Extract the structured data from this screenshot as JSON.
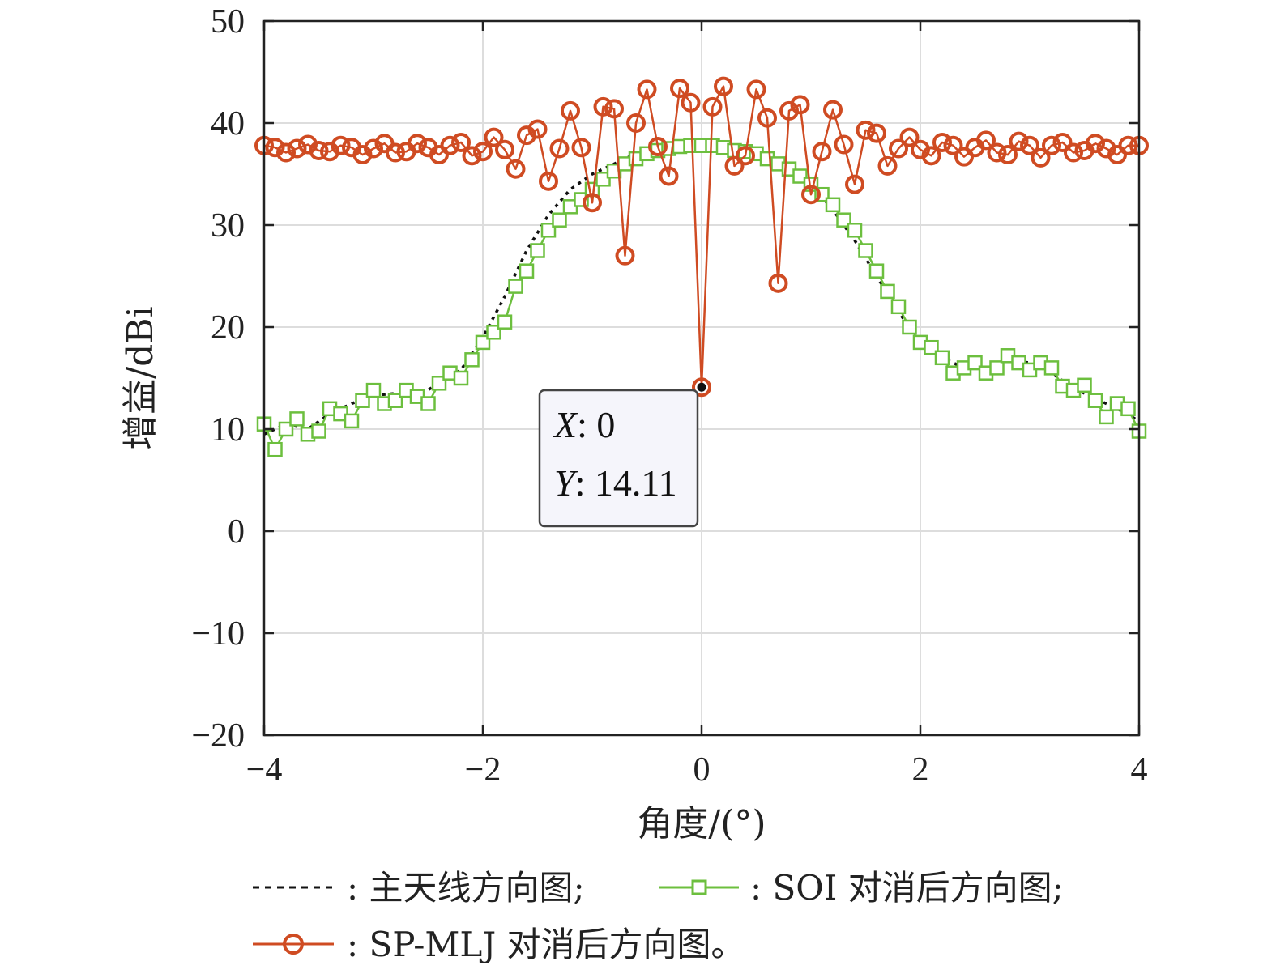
{
  "chart_data": {
    "type": "line",
    "xlabel": "角度/(°)",
    "ylabel": "增益/dBi",
    "xlim": [
      -4,
      4
    ],
    "ylim": [
      -20,
      50
    ],
    "xticks": [
      "−4",
      "−2",
      "0",
      "2",
      "4"
    ],
    "xtick_values": [
      -4,
      -2,
      0,
      2,
      4
    ],
    "yticks": [
      "50",
      "40",
      "30",
      "20",
      "10",
      "0",
      "−10",
      "−20"
    ],
    "ytick_values": [
      50,
      40,
      30,
      20,
      10,
      0,
      -10,
      -20
    ],
    "grid": true,
    "legend_position": "bottom",
    "colors": {
      "main": "#111111",
      "soi": "#6cbf3e",
      "sp": "#cf4b22",
      "grid": "#dddddd"
    },
    "series": [
      {
        "name": "主天线方向图",
        "key": "main",
        "style": "dotted",
        "x": [
          -4.0,
          -3.8,
          -3.6,
          -3.4,
          -3.2,
          -3.0,
          -2.8,
          -2.6,
          -2.4,
          -2.2,
          -2.0,
          -1.8,
          -1.6,
          -1.4,
          -1.2,
          -1.0,
          -0.8,
          -0.6,
          -0.4,
          -0.2,
          0.0,
          0.2,
          0.4,
          0.6,
          0.8,
          1.0,
          1.2,
          1.4,
          1.6,
          1.8,
          2.0,
          2.2,
          2.4,
          2.6,
          2.8,
          3.0,
          3.2,
          3.4,
          3.6,
          3.8,
          4.0
        ],
        "y": [
          9.5,
          10.5,
          10.0,
          11.5,
          12.5,
          13.3,
          13.5,
          13.2,
          14.5,
          15.8,
          19.0,
          23.0,
          27.5,
          31.0,
          33.5,
          35.0,
          36.0,
          37.0,
          37.5,
          38.0,
          38.0,
          38.0,
          37.5,
          37.0,
          36.0,
          34.0,
          31.5,
          28.5,
          25.0,
          21.5,
          18.5,
          17.0,
          16.0,
          16.0,
          16.8,
          16.5,
          15.5,
          14.0,
          13.0,
          12.0,
          10.8
        ]
      },
      {
        "name": "SOI 对消后方向图",
        "key": "soi",
        "style": "square",
        "x": [
          -4.0,
          -3.9,
          -3.8,
          -3.7,
          -3.6,
          -3.5,
          -3.4,
          -3.3,
          -3.2,
          -3.1,
          -3.0,
          -2.9,
          -2.8,
          -2.7,
          -2.6,
          -2.5,
          -2.4,
          -2.3,
          -2.2,
          -2.1,
          -2.0,
          -1.9,
          -1.8,
          -1.7,
          -1.6,
          -1.5,
          -1.4,
          -1.3,
          -1.2,
          -1.1,
          -1.0,
          -0.9,
          -0.8,
          -0.7,
          -0.6,
          -0.5,
          -0.4,
          -0.3,
          -0.2,
          -0.1,
          0.0,
          0.1,
          0.2,
          0.3,
          0.4,
          0.5,
          0.6,
          0.7,
          0.8,
          0.9,
          1.0,
          1.1,
          1.2,
          1.3,
          1.4,
          1.5,
          1.6,
          1.7,
          1.8,
          1.9,
          2.0,
          2.1,
          2.2,
          2.3,
          2.4,
          2.5,
          2.6,
          2.7,
          2.8,
          2.9,
          3.0,
          3.1,
          3.2,
          3.3,
          3.4,
          3.5,
          3.6,
          3.7,
          3.8,
          3.9,
          4.0
        ],
        "y": [
          10.5,
          8.0,
          10.0,
          11.0,
          9.5,
          9.8,
          12.0,
          11.5,
          10.8,
          12.8,
          13.8,
          12.5,
          12.8,
          13.8,
          13.2,
          12.5,
          14.5,
          15.5,
          15.0,
          16.8,
          18.5,
          19.5,
          20.5,
          24.0,
          25.5,
          27.5,
          29.5,
          30.5,
          31.8,
          32.5,
          33.5,
          34.5,
          35.3,
          36.0,
          36.5,
          37.0,
          37.3,
          37.5,
          37.7,
          37.8,
          37.8,
          37.8,
          37.6,
          37.3,
          37.2,
          37.0,
          36.5,
          36.0,
          35.5,
          34.8,
          34.0,
          33.0,
          32.0,
          30.5,
          29.5,
          27.5,
          25.5,
          23.5,
          22.0,
          20.0,
          18.5,
          18.0,
          17.0,
          15.5,
          16.0,
          16.5,
          15.5,
          16.0,
          17.2,
          16.5,
          15.8,
          16.5,
          16.0,
          14.2,
          13.8,
          14.3,
          12.8,
          11.2,
          12.5,
          12.0,
          9.8
        ]
      },
      {
        "name": "SP-MLJ 对消后方向图",
        "key": "sp",
        "style": "circle",
        "x": [
          -4.0,
          -3.9,
          -3.8,
          -3.7,
          -3.6,
          -3.5,
          -3.4,
          -3.3,
          -3.2,
          -3.1,
          -3.0,
          -2.9,
          -2.8,
          -2.7,
          -2.6,
          -2.5,
          -2.4,
          -2.3,
          -2.2,
          -2.1,
          -2.0,
          -1.9,
          -1.8,
          -1.7,
          -1.6,
          -1.5,
          -1.4,
          -1.3,
          -1.2,
          -1.1,
          -1.0,
          -0.9,
          -0.8,
          -0.7,
          -0.6,
          -0.5,
          -0.4,
          -0.3,
          -0.2,
          -0.1,
          0.0,
          0.1,
          0.2,
          0.3,
          0.4,
          0.5,
          0.6,
          0.7,
          0.8,
          0.9,
          1.0,
          1.1,
          1.2,
          1.3,
          1.4,
          1.5,
          1.6,
          1.7,
          1.8,
          1.9,
          2.0,
          2.1,
          2.2,
          2.3,
          2.4,
          2.5,
          2.6,
          2.7,
          2.8,
          2.9,
          3.0,
          3.1,
          3.2,
          3.3,
          3.4,
          3.5,
          3.6,
          3.7,
          3.8,
          3.9,
          4.0
        ],
        "y": [
          37.8,
          37.6,
          37.1,
          37.5,
          37.9,
          37.3,
          37.2,
          37.8,
          37.6,
          36.9,
          37.5,
          38.0,
          37.1,
          37.2,
          38.0,
          37.6,
          36.9,
          37.8,
          38.1,
          36.8,
          37.2,
          38.6,
          37.4,
          35.5,
          38.8,
          39.4,
          34.3,
          37.5,
          41.2,
          37.6,
          32.2,
          41.6,
          41.4,
          27.0,
          40.0,
          43.3,
          37.7,
          34.8,
          43.4,
          42.0,
          14.11,
          41.6,
          43.6,
          35.8,
          36.8,
          43.3,
          40.5,
          24.3,
          41.2,
          41.8,
          33.0,
          37.2,
          41.3,
          37.9,
          34.0,
          39.3,
          39.0,
          35.8,
          37.5,
          38.6,
          37.4,
          36.8,
          38.1,
          37.8,
          36.7,
          37.6,
          38.3,
          37.1,
          36.9,
          38.2,
          37.8,
          36.6,
          37.8,
          38.1,
          37.1,
          37.3,
          38.0,
          37.5,
          36.9,
          37.8,
          37.8
        ]
      }
    ],
    "datatip": {
      "x_label": "X",
      "x_value": "0",
      "y_label": "Y",
      "y_value": "14.11",
      "x": 0,
      "y": 14.11
    }
  },
  "legend": {
    "main_label": ": 主天线方向图;",
    "soi_label": ": SOI 对消后方向图;",
    "sp_label": ": SP-MLJ 对消后方向图。"
  }
}
